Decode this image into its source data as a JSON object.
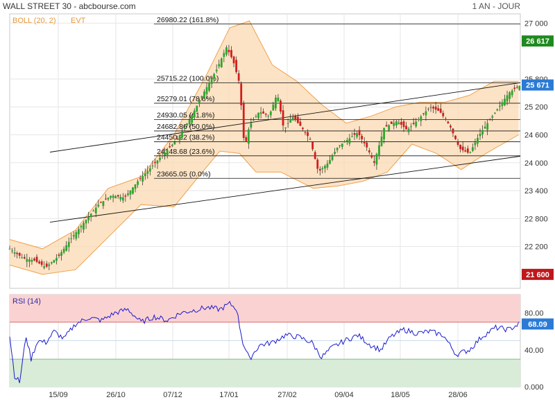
{
  "header": {
    "title": "WALL STREET 30 - abcbourse.com",
    "period": "1 AN - JOUR"
  },
  "chart_data": [
    {
      "type": "candlestick",
      "legend": [
        "BOLL (20, 2)",
        "EVT"
      ],
      "ylim": [
        21300,
        27200
      ],
      "y_ticks": [
        {
          "value": 27000,
          "label": "27 000"
        },
        {
          "value": 25800,
          "label": "25 800"
        },
        {
          "value": 25200,
          "label": "25 200"
        },
        {
          "value": 24600,
          "label": "24 600"
        },
        {
          "value": 24000,
          "label": "24 000"
        },
        {
          "value": 23400,
          "label": "23 400"
        },
        {
          "value": 22800,
          "label": "22 800"
        },
        {
          "value": 22200,
          "label": "22 200"
        }
      ],
      "highlight_labels": [
        {
          "value": 26617,
          "label": "26 617",
          "color": "#1f8a1f"
        },
        {
          "value": 25671,
          "label": "25 671",
          "color": "#2b7bd6"
        },
        {
          "value": 21600,
          "label": "21 600",
          "color": "#c0161c"
        }
      ],
      "x_ticks": [
        "15/09",
        "26/10",
        "07/12",
        "17/01",
        "27/02",
        "09/04",
        "18/05",
        "28/06"
      ],
      "fibonacci": [
        {
          "value": 26980.22,
          "label": "26980.22  (161.8%)"
        },
        {
          "value": 25715.22,
          "label": "25715.22  (100.0%)"
        },
        {
          "value": 25279.01,
          "label": "25279.01  (78.6%)"
        },
        {
          "value": 24930.05,
          "label": "24930.05  (61.8%)"
        },
        {
          "value": 24682.86,
          "label": "24682.86  (50.0%)"
        },
        {
          "value": 24450.22,
          "label": "24450.22  (38.2%)"
        },
        {
          "value": 24148.68,
          "label": "24148.68  (23.6%)"
        },
        {
          "value": 23665.05,
          "label": "23665.05  (0.0%)"
        }
      ],
      "price_series": [
        [
          0,
          22150
        ],
        [
          8,
          21950
        ],
        [
          15,
          21900
        ],
        [
          22,
          21750
        ],
        [
          30,
          22000
        ],
        [
          38,
          22400
        ],
        [
          46,
          22750
        ],
        [
          54,
          23100
        ],
        [
          62,
          23300
        ],
        [
          70,
          23250
        ],
        [
          78,
          23600
        ],
        [
          86,
          23900
        ],
        [
          94,
          24200
        ],
        [
          102,
          24500
        ],
        [
          110,
          24950
        ],
        [
          118,
          25500
        ],
        [
          126,
          26000
        ],
        [
          132,
          26480
        ],
        [
          136,
          26200
        ],
        [
          140,
          25700
        ],
        [
          143,
          24300
        ],
        [
          146,
          24800
        ],
        [
          152,
          25100
        ],
        [
          158,
          25000
        ],
        [
          163,
          25500
        ],
        [
          167,
          24700
        ],
        [
          172,
          25000
        ],
        [
          178,
          24750
        ],
        [
          183,
          24500
        ],
        [
          188,
          23800
        ],
        [
          194,
          24000
        ],
        [
          200,
          24350
        ],
        [
          206,
          24500
        ],
        [
          212,
          24650
        ],
        [
          218,
          24300
        ],
        [
          222,
          24000
        ],
        [
          228,
          24750
        ],
        [
          236,
          24900
        ],
        [
          242,
          24700
        ],
        [
          248,
          24900
        ],
        [
          256,
          25200
        ],
        [
          262,
          25100
        ],
        [
          268,
          24800
        ],
        [
          274,
          24300
        ],
        [
          280,
          24200
        ],
        [
          286,
          24600
        ],
        [
          292,
          24900
        ],
        [
          298,
          25200
        ],
        [
          304,
          25500
        ],
        [
          310,
          25650
        ]
      ],
      "bollinger_upper": [
        [
          0,
          22350
        ],
        [
          20,
          22150
        ],
        [
          40,
          22550
        ],
        [
          60,
          23450
        ],
        [
          80,
          23700
        ],
        [
          100,
          24600
        ],
        [
          120,
          25900
        ],
        [
          134,
          26900
        ],
        [
          146,
          27050
        ],
        [
          160,
          26100
        ],
        [
          175,
          25750
        ],
        [
          190,
          25250
        ],
        [
          205,
          24850
        ],
        [
          220,
          25000
        ],
        [
          235,
          25200
        ],
        [
          250,
          25300
        ],
        [
          265,
          25300
        ],
        [
          280,
          25450
        ],
        [
          295,
          25750
        ],
        [
          310,
          25750
        ]
      ],
      "bollinger_lower": [
        [
          0,
          21800
        ],
        [
          20,
          21600
        ],
        [
          40,
          21700
        ],
        [
          60,
          22400
        ],
        [
          80,
          23100
        ],
        [
          100,
          23050
        ],
        [
          115,
          23700
        ],
        [
          128,
          24250
        ],
        [
          140,
          24200
        ],
        [
          150,
          23800
        ],
        [
          165,
          23800
        ],
        [
          185,
          23450
        ],
        [
          200,
          23500
        ],
        [
          215,
          23600
        ],
        [
          230,
          23800
        ],
        [
          245,
          24400
        ],
        [
          260,
          24200
        ],
        [
          275,
          23850
        ],
        [
          290,
          24200
        ],
        [
          310,
          24600
        ]
      ],
      "trendlines": [
        {
          "x": [
            0,
            311
          ],
          "y": [
            24100,
            25720
          ]
        },
        {
          "x": [
            0,
            311
          ],
          "y": [
            22600,
            24140
          ]
        }
      ]
    },
    {
      "type": "line",
      "legend": [
        "RSI (14)"
      ],
      "ylim": [
        0,
        100
      ],
      "y_ticks": [
        {
          "value": 80,
          "label": "80.00"
        },
        {
          "value": 40,
          "label": "40.00"
        },
        {
          "value": 0,
          "label": "0.000"
        }
      ],
      "current_label": {
        "value": 68.09,
        "label": "68.09"
      },
      "overbought": 70,
      "oversold": 30,
      "midline": 50,
      "series": [
        [
          0,
          55
        ],
        [
          3,
          12
        ],
        [
          6,
          5
        ],
        [
          10,
          55
        ],
        [
          13,
          30
        ],
        [
          17,
          50
        ],
        [
          22,
          48
        ],
        [
          27,
          60
        ],
        [
          33,
          52
        ],
        [
          40,
          68
        ],
        [
          48,
          75
        ],
        [
          56,
          72
        ],
        [
          64,
          80
        ],
        [
          72,
          84
        ],
        [
          80,
          70
        ],
        [
          88,
          76
        ],
        [
          96,
          72
        ],
        [
          104,
          80
        ],
        [
          112,
          83
        ],
        [
          120,
          86
        ],
        [
          128,
          84
        ],
        [
          134,
          90
        ],
        [
          138,
          85
        ],
        [
          142,
          48
        ],
        [
          146,
          30
        ],
        [
          152,
          45
        ],
        [
          160,
          48
        ],
        [
          168,
          56
        ],
        [
          176,
          54
        ],
        [
          184,
          48
        ],
        [
          190,
          32
        ],
        [
          196,
          42
        ],
        [
          204,
          50
        ],
        [
          212,
          56
        ],
        [
          220,
          45
        ],
        [
          226,
          40
        ],
        [
          232,
          54
        ],
        [
          240,
          62
        ],
        [
          248,
          58
        ],
        [
          256,
          60
        ],
        [
          264,
          56
        ],
        [
          272,
          35
        ],
        [
          280,
          40
        ],
        [
          288,
          55
        ],
        [
          296,
          64
        ],
        [
          304,
          62
        ],
        [
          310,
          68
        ]
      ]
    }
  ]
}
